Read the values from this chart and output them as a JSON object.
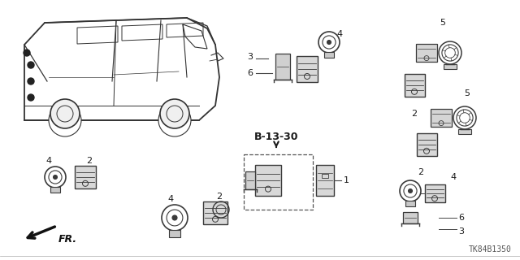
{
  "background_color": "#ffffff",
  "text_color": "#1a1a1a",
  "line_color": "#444444",
  "diagram_label": "B-13-30",
  "part_code": "TK84B1350",
  "fr_label": "FR.",
  "van_color": "#333333",
  "part_color": "#3a3a3a"
}
